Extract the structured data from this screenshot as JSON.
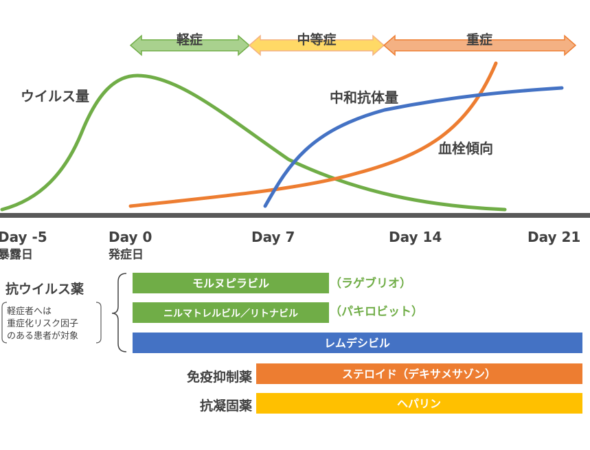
{
  "phases": [
    {
      "label": "軽症",
      "color": "#a9d18e",
      "stroke": "#70ad47"
    },
    {
      "label": "中等症",
      "color": "#ffd966",
      "stroke": "#f4b183"
    },
    {
      "label": "重症",
      "color": "#f4b183",
      "stroke": "#ed7d31"
    }
  ],
  "curves": {
    "virus": {
      "label": "ウイルス量",
      "color": "#70ad47"
    },
    "antibody": {
      "label": "中和抗体量",
      "color": "#4472c4"
    },
    "thrombosis": {
      "label": "血栓傾向",
      "color": "#ed7d31"
    }
  },
  "axis": {
    "ticks": [
      {
        "label": "Day -5",
        "sub": "暴露日"
      },
      {
        "label": "Day 0",
        "sub": "発症日"
      },
      {
        "label": "Day 7",
        "sub": ""
      },
      {
        "label": "Day 14",
        "sub": ""
      },
      {
        "label": "Day 21",
        "sub": ""
      }
    ]
  },
  "drugs": {
    "antiviral": {
      "heading": "抗ウイルス薬",
      "note": [
        "軽症者へは",
        "重症化リスク因子",
        "のある患者が対象"
      ],
      "items": [
        {
          "label": "モルヌピラビル",
          "alias": "（ラゲブリオ）",
          "color": "#70ad47"
        },
        {
          "label": "ニルマトレルビル／リトナビル",
          "alias": "（パキロビット）",
          "color": "#70ad47"
        },
        {
          "label": "レムデシビル",
          "alias": "",
          "color": "#4472c4"
        }
      ]
    },
    "immunosuppressant": {
      "heading": "免疫抑制薬",
      "item": "ステロイド（デキサメサゾン）",
      "color": "#ed7d31"
    },
    "anticoagulant": {
      "heading": "抗凝固薬",
      "item": "ヘパリン",
      "color": "#ffc000"
    }
  },
  "colors": {
    "axis": "#595959",
    "text": "#404040",
    "alias": "#70ad47",
    "bar_text": "#ffffff"
  }
}
